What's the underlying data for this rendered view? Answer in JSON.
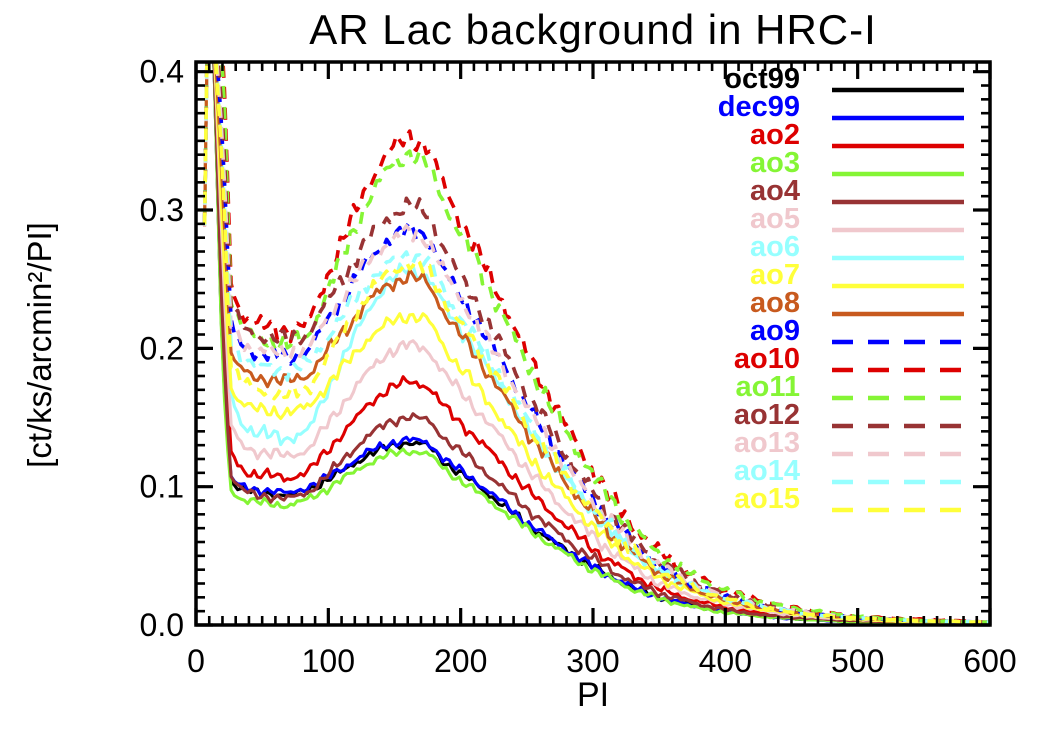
{
  "chart_data": {
    "type": "line",
    "title": "AR Lac background in HRC-I",
    "xlabel": "PI",
    "ylabel": "[ct/ks/arcmin²/PI]",
    "xlim": [
      0,
      600
    ],
    "ylim": [
      0.0,
      0.407
    ],
    "x_ticks": [
      0,
      100,
      200,
      300,
      400,
      500,
      600
    ],
    "x_tick_labels": [
      "0",
      "100",
      "200",
      "300",
      "400",
      "500",
      "600"
    ],
    "y_ticks": [
      0.0,
      0.1,
      0.2,
      0.3,
      0.4
    ],
    "y_tick_labels": [
      "0.0",
      "0.1",
      "0.2",
      "0.3",
      "0.4"
    ],
    "x_minor_step": 10,
    "y_minor_step": 0.01,
    "grid": false,
    "legend_position": "upper right",
    "note": "all curves spike above the plotted y-range near PI 8-18 (clipped at top); broad bump peaks near PI 160",
    "x": [
      4,
      8,
      12,
      20,
      26,
      34,
      44,
      56,
      70,
      85,
      100,
      115,
      130,
      145,
      160,
      175,
      190,
      210,
      230,
      250,
      270,
      290,
      310,
      330,
      350,
      375,
      400,
      430,
      460,
      500,
      550,
      600
    ],
    "series": [
      {
        "name": "oct99",
        "color": "#000000",
        "linestyle": "solid",
        "values": [
          0.005,
          0.46,
          0.46,
          0.189,
          0.104,
          0.098,
          0.096,
          0.095,
          0.093,
          0.098,
          0.105,
          0.114,
          0.123,
          0.129,
          0.132,
          0.13,
          0.116,
          0.103,
          0.088,
          0.073,
          0.06,
          0.048,
          0.036,
          0.027,
          0.02,
          0.014,
          0.01,
          0.006,
          0.004,
          0.002,
          0.001,
          0.001
        ]
      },
      {
        "name": "dec99",
        "color": "#0000ff",
        "linestyle": "solid",
        "values": [
          0.005,
          0.46,
          0.46,
          0.191,
          0.106,
          0.1,
          0.098,
          0.097,
          0.095,
          0.1,
          0.107,
          0.116,
          0.125,
          0.131,
          0.134,
          0.132,
          0.118,
          0.105,
          0.09,
          0.074,
          0.061,
          0.048,
          0.037,
          0.027,
          0.02,
          0.014,
          0.01,
          0.006,
          0.004,
          0.002,
          0.001,
          0.001
        ]
      },
      {
        "name": "ao2",
        "color": "#dd0000",
        "linestyle": "solid",
        "values": [
          0.005,
          0.46,
          0.46,
          0.24,
          0.125,
          0.113,
          0.109,
          0.108,
          0.106,
          0.111,
          0.127,
          0.143,
          0.159,
          0.171,
          0.176,
          0.173,
          0.155,
          0.137,
          0.118,
          0.098,
          0.08,
          0.063,
          0.048,
          0.036,
          0.026,
          0.018,
          0.013,
          0.008,
          0.005,
          0.003,
          0.002,
          0.001
        ]
      },
      {
        "name": "ao3",
        "color": "#85f535",
        "linestyle": "solid",
        "values": [
          0.005,
          0.46,
          0.46,
          0.184,
          0.098,
          0.091,
          0.089,
          0.088,
          0.086,
          0.091,
          0.099,
          0.108,
          0.117,
          0.123,
          0.126,
          0.124,
          0.111,
          0.098,
          0.084,
          0.07,
          0.057,
          0.045,
          0.035,
          0.026,
          0.019,
          0.013,
          0.009,
          0.006,
          0.004,
          0.002,
          0.001,
          0.001
        ]
      },
      {
        "name": "ao4",
        "color": "#983334",
        "linestyle": "solid",
        "values": [
          0.005,
          0.46,
          0.46,
          0.213,
          0.108,
          0.098,
          0.094,
          0.093,
          0.091,
          0.096,
          0.109,
          0.123,
          0.137,
          0.146,
          0.151,
          0.148,
          0.133,
          0.118,
          0.101,
          0.084,
          0.069,
          0.054,
          0.042,
          0.031,
          0.023,
          0.016,
          0.011,
          0.007,
          0.005,
          0.003,
          0.002,
          0.001
        ]
      },
      {
        "name": "ao5",
        "color": "#f0c8cd",
        "linestyle": "solid",
        "values": [
          0.005,
          0.46,
          0.46,
          0.269,
          0.144,
          0.13,
          0.126,
          0.124,
          0.122,
          0.127,
          0.146,
          0.165,
          0.183,
          0.197,
          0.203,
          0.199,
          0.179,
          0.158,
          0.136,
          0.113,
          0.092,
          0.073,
          0.056,
          0.042,
          0.03,
          0.021,
          0.015,
          0.01,
          0.006,
          0.004,
          0.002,
          0.001
        ]
      },
      {
        "name": "ao6",
        "color": "#96ffff",
        "linestyle": "solid",
        "values": [
          0.005,
          0.46,
          0.46,
          0.332,
          0.167,
          0.147,
          0.139,
          0.137,
          0.135,
          0.14,
          0.171,
          0.2,
          0.228,
          0.248,
          0.258,
          0.252,
          0.227,
          0.201,
          0.173,
          0.143,
          0.117,
          0.093,
          0.071,
          0.053,
          0.039,
          0.027,
          0.019,
          0.012,
          0.008,
          0.005,
          0.003,
          0.002
        ]
      },
      {
        "name": "ao7",
        "color": "#ffff3a",
        "linestyle": "solid",
        "values": [
          0.005,
          0.46,
          0.46,
          0.288,
          0.172,
          0.161,
          0.156,
          0.155,
          0.153,
          0.158,
          0.174,
          0.191,
          0.207,
          0.218,
          0.224,
          0.221,
          0.197,
          0.175,
          0.15,
          0.124,
          0.102,
          0.081,
          0.062,
          0.046,
          0.034,
          0.024,
          0.016,
          0.011,
          0.007,
          0.004,
          0.002,
          0.001
        ]
      },
      {
        "name": "ao8",
        "color": "#c85a1e",
        "linestyle": "solid",
        "values": [
          0.005,
          0.46,
          0.46,
          0.317,
          0.197,
          0.184,
          0.179,
          0.178,
          0.176,
          0.181,
          0.199,
          0.216,
          0.234,
          0.246,
          0.252,
          0.248,
          0.222,
          0.197,
          0.169,
          0.14,
          0.115,
          0.091,
          0.069,
          0.052,
          0.038,
          0.026,
          0.018,
          0.012,
          0.008,
          0.005,
          0.003,
          0.002
        ]
      },
      {
        "name": "ao9",
        "color": "#0000ff",
        "linestyle": "dashed",
        "values": [
          0.005,
          0.46,
          0.46,
          0.354,
          0.218,
          0.202,
          0.197,
          0.195,
          0.193,
          0.198,
          0.22,
          0.242,
          0.263,
          0.279,
          0.286,
          0.281,
          0.252,
          0.223,
          0.192,
          0.159,
          0.13,
          0.103,
          0.079,
          0.059,
          0.043,
          0.03,
          0.021,
          0.013,
          0.009,
          0.005,
          0.003,
          0.002
        ]
      },
      {
        "name": "ao10",
        "color": "#dd0000",
        "linestyle": "dashed",
        "values": [
          0.005,
          0.46,
          0.46,
          0.431,
          0.25,
          0.226,
          0.218,
          0.215,
          0.213,
          0.218,
          0.254,
          0.287,
          0.319,
          0.342,
          0.353,
          0.346,
          0.311,
          0.275,
          0.237,
          0.196,
          0.161,
          0.127,
          0.097,
          0.072,
          0.053,
          0.037,
          0.025,
          0.017,
          0.011,
          0.006,
          0.004,
          0.002
        ]
      },
      {
        "name": "ao11",
        "color": "#85f535",
        "linestyle": "dashed",
        "values": [
          0.005,
          0.46,
          0.46,
          0.418,
          0.239,
          0.216,
          0.208,
          0.205,
          0.203,
          0.208,
          0.243,
          0.276,
          0.307,
          0.33,
          0.341,
          0.334,
          0.3,
          0.266,
          0.228,
          0.189,
          0.155,
          0.123,
          0.094,
          0.07,
          0.051,
          0.036,
          0.025,
          0.016,
          0.011,
          0.006,
          0.003,
          0.002
        ]
      },
      {
        "name": "ao12",
        "color": "#983334",
        "linestyle": "dashed",
        "values": [
          0.005,
          0.46,
          0.46,
          0.372,
          0.232,
          0.216,
          0.21,
          0.208,
          0.206,
          0.211,
          0.235,
          0.257,
          0.279,
          0.295,
          0.303,
          0.298,
          0.267,
          0.236,
          0.203,
          0.168,
          0.138,
          0.109,
          0.083,
          0.062,
          0.045,
          0.032,
          0.022,
          0.014,
          0.009,
          0.005,
          0.003,
          0.002
        ]
      },
      {
        "name": "ao13",
        "color": "#f0c8cd",
        "linestyle": "dashed",
        "values": [
          0.005,
          0.46,
          0.46,
          0.351,
          0.22,
          0.205,
          0.2,
          0.198,
          0.196,
          0.201,
          0.222,
          0.243,
          0.263,
          0.277,
          0.284,
          0.28,
          0.25,
          0.222,
          0.19,
          0.158,
          0.129,
          0.102,
          0.078,
          0.058,
          0.043,
          0.03,
          0.02,
          0.013,
          0.009,
          0.005,
          0.003,
          0.002
        ]
      },
      {
        "name": "ao14",
        "color": "#96ffff",
        "linestyle": "dashed",
        "values": [
          0.005,
          0.46,
          0.46,
          0.334,
          0.207,
          0.193,
          0.188,
          0.186,
          0.184,
          0.189,
          0.209,
          0.229,
          0.248,
          0.261,
          0.268,
          0.264,
          0.236,
          0.209,
          0.18,
          0.149,
          0.122,
          0.096,
          0.074,
          0.055,
          0.04,
          0.028,
          0.019,
          0.013,
          0.008,
          0.005,
          0.003,
          0.002
        ]
      },
      {
        "name": "ao15",
        "color": "#ffff3a",
        "linestyle": "dashed",
        "values": [
          0.005,
          0.46,
          0.46,
          0.331,
          0.192,
          0.176,
          0.17,
          0.168,
          0.166,
          0.171,
          0.194,
          0.217,
          0.239,
          0.254,
          0.262,
          0.257,
          0.231,
          0.204,
          0.176,
          0.145,
          0.119,
          0.094,
          0.072,
          0.054,
          0.039,
          0.028,
          0.019,
          0.012,
          0.008,
          0.005,
          0.003,
          0.002
        ]
      }
    ]
  }
}
